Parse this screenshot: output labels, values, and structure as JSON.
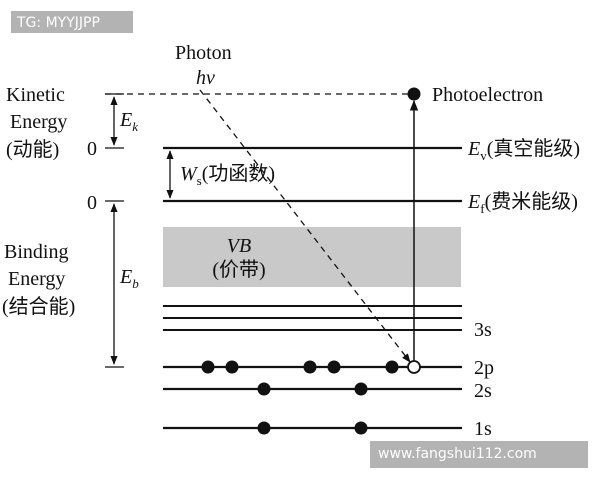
{
  "watermarks": {
    "top": "TG: MYYJJPP",
    "bottom": "www.fangshui112.com"
  },
  "photon": {
    "label": "Photon",
    "symbol": "hν"
  },
  "photoelectron_label": "Photoelectron",
  "left_axis": {
    "kinetic_line1": "Kinetic",
    "kinetic_line2": "Energy",
    "kinetic_cn": "(动能)",
    "zero_upper": "0",
    "zero_lower": "0",
    "binding_line1": "Binding",
    "binding_line2": "Energy",
    "binding_cn": "(结合能)"
  },
  "arrows": {
    "ek_main": "E",
    "ek_sub": "k",
    "eb_main": "E",
    "eb_sub": "b",
    "ws_main": "W",
    "ws_sub": "s",
    "ws_cn": "(功函数)"
  },
  "levels": {
    "ev_main": "E",
    "ev_sub": "v",
    "ev_cn": "(真空能级)",
    "ef_main": "E",
    "ef_sub": "f",
    "ef_cn": "(费米能级)",
    "vb_label": "VB",
    "vb_cn": "(价带)",
    "shell_3s": "3s",
    "shell_2p": "2p",
    "shell_2s": "2s",
    "shell_1s": "1s"
  },
  "colors": {
    "ink": "#111111",
    "band": "#c9c9c9",
    "watermark_bg": "#b3b3b3"
  }
}
